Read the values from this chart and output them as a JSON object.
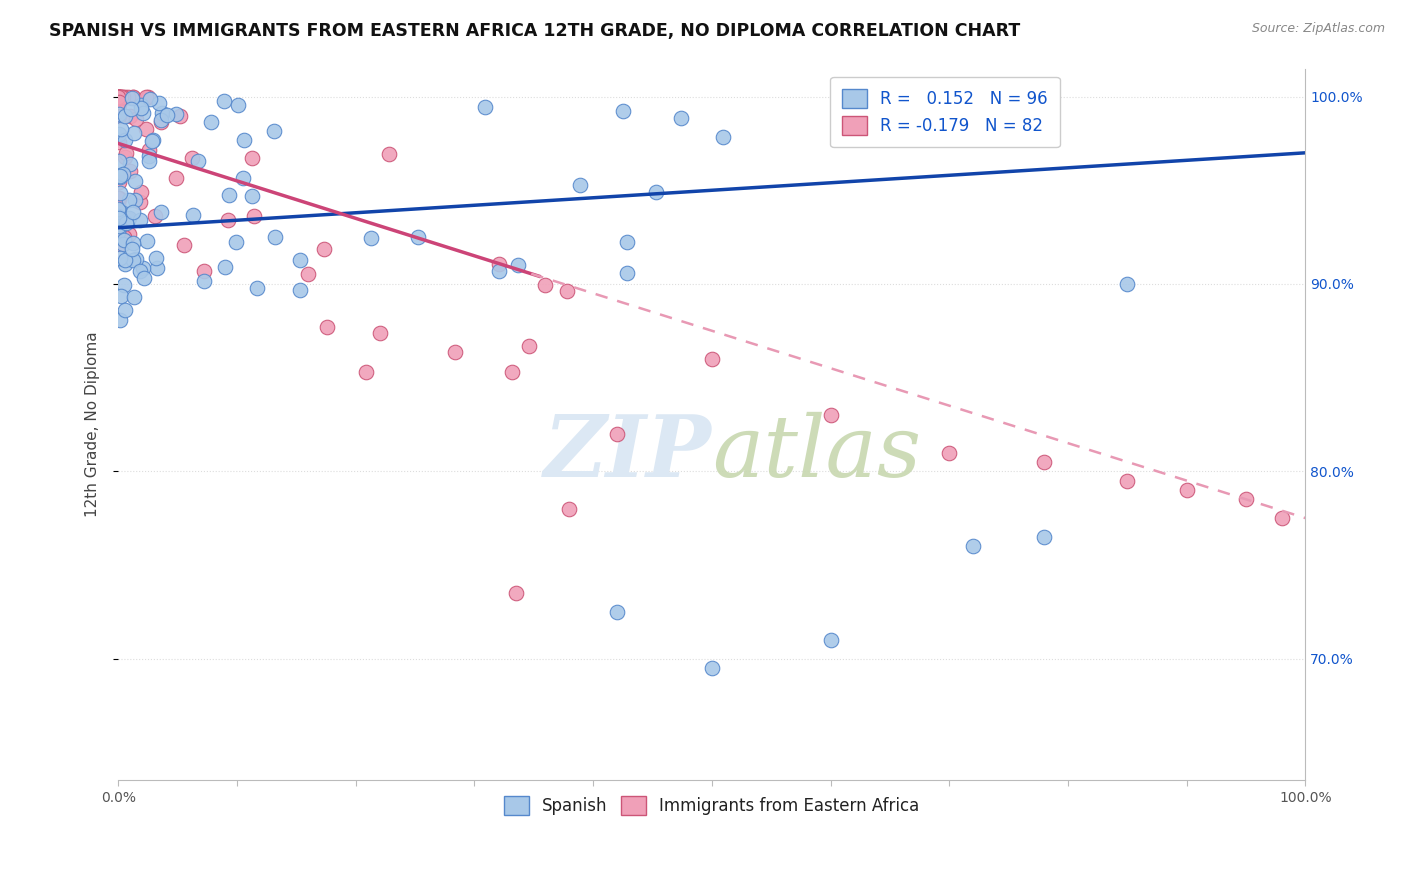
{
  "title": "SPANISH VS IMMIGRANTS FROM EASTERN AFRICA 12TH GRADE, NO DIPLOMA CORRELATION CHART",
  "source_text": "Source: ZipAtlas.com",
  "ylabel": "12th Grade, No Diploma",
  "r_spanish": 0.152,
  "n_spanish": 96,
  "r_eastern_africa": -0.179,
  "n_eastern_africa": 82,
  "xlim": [
    0.0,
    1.0
  ],
  "ylim": [
    0.635,
    1.015
  ],
  "yticks": [
    0.7,
    0.8,
    0.9,
    1.0
  ],
  "ytick_labels": [
    "70.0%",
    "80.0%",
    "90.0%",
    "100.0%"
  ],
  "spanish_color": "#a8c8e8",
  "eastern_africa_color": "#f0a0b8",
  "spanish_edge_color": "#5588cc",
  "eastern_africa_edge_color": "#cc5577",
  "trend_spanish_color": "#1144aa",
  "trend_eastern_africa_solid_color": "#cc4477",
  "trend_eastern_africa_dash_color": "#e899b4",
  "background_color": "#ffffff",
  "legend_r_color": "#1155cc",
  "watermark_color": "#dce8f4",
  "title_fontsize": 12.5,
  "axis_label_fontsize": 11,
  "tick_fontsize": 10,
  "legend_fontsize": 12,
  "grid_color": "#dddddd",
  "spine_color": "#bbbbbb"
}
